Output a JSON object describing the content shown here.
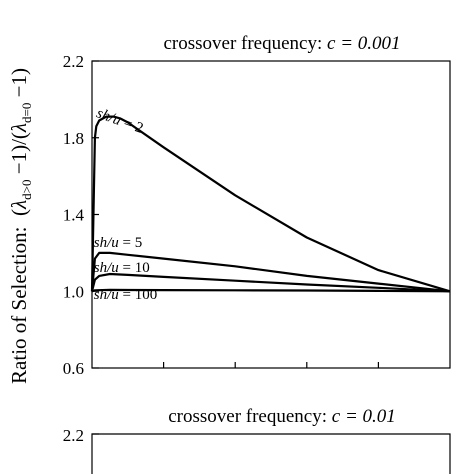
{
  "chart_data": [
    {
      "type": "line",
      "title": "crossover frequency: c = 0.001",
      "title_prefix": "crossover frequency: ",
      "title_value": "c = 0.001",
      "ylabel": "Ratio of Selection:  (λ_{d>0} − 1)/(λ_{d=0} − 1)",
      "ylabel_prefix": "Ratio of Selection:",
      "ylim": [
        0.6,
        2.2
      ],
      "yticks": [
        "0.6",
        "1.0",
        "1.4",
        "1.8",
        "2.2"
      ],
      "xlim": [
        0,
        1
      ],
      "grid": false,
      "series": [
        {
          "name": "sh/u = 2",
          "x": [
            0.0,
            0.008,
            0.012,
            0.02,
            0.04,
            0.06,
            0.08,
            0.1,
            0.2,
            0.4,
            0.6,
            0.8,
            1.0
          ],
          "y": [
            1.0,
            1.8,
            1.86,
            1.89,
            1.91,
            1.91,
            1.9,
            1.88,
            1.75,
            1.5,
            1.28,
            1.11,
            1.0
          ]
        },
        {
          "name": "sh/u = 5",
          "x": [
            0.0,
            0.008,
            0.02,
            0.05,
            0.1,
            0.2,
            0.4,
            0.6,
            0.8,
            1.0
          ],
          "y": [
            1.0,
            1.17,
            1.2,
            1.2,
            1.19,
            1.17,
            1.13,
            1.08,
            1.04,
            1.0
          ]
        },
        {
          "name": "sh/u = 10",
          "x": [
            0.0,
            0.008,
            0.02,
            0.05,
            0.1,
            0.2,
            0.4,
            0.6,
            0.8,
            1.0
          ],
          "y": [
            1.0,
            1.06,
            1.08,
            1.09,
            1.085,
            1.075,
            1.055,
            1.035,
            1.018,
            1.0
          ]
        },
        {
          "name": "sh/u = 100",
          "x": [
            0.0,
            0.008,
            0.05,
            0.2,
            0.4,
            0.6,
            0.8,
            1.0
          ],
          "y": [
            1.0,
            1.005,
            1.007,
            1.006,
            1.005,
            1.004,
            1.002,
            1.0
          ]
        }
      ],
      "annotations": [
        {
          "text": "sh/u = 2",
          "x": 0.01,
          "y": 1.91
        },
        {
          "text": "sh/u = 5",
          "x": 0.005,
          "y": 1.23
        },
        {
          "text": "sh/u = 10",
          "x": 0.005,
          "y": 1.1
        },
        {
          "text": "sh/u = 100",
          "x": 0.005,
          "y": 0.96
        }
      ]
    },
    {
      "type": "line",
      "title": "crossover frequency: c = 0.01",
      "title_prefix": "crossover frequency: ",
      "title_value": "c = 0.01",
      "yticks": [
        "2.2"
      ],
      "series": []
    }
  ]
}
